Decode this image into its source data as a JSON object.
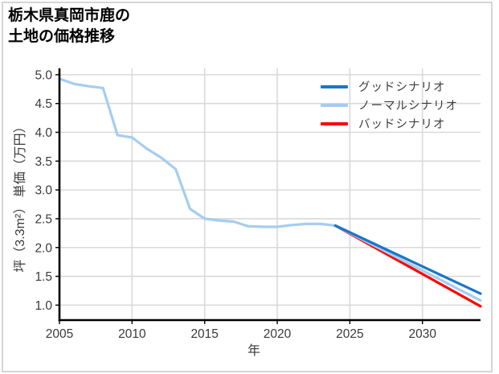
{
  "title": {
    "line1": "栃木県真岡市鹿の",
    "line2": "土地の価格推移"
  },
  "chart_data": {
    "type": "line",
    "title": "栃木県真岡市鹿の土地の価格推移",
    "xlabel": "年",
    "ylabel": "坪（3.3m²） 単価（万円）",
    "xlim": [
      2005,
      2034
    ],
    "ylim": [
      0.74,
      5.11
    ],
    "x_ticks": [
      2005,
      2010,
      2015,
      2020,
      2025,
      2030
    ],
    "y_ticks": [
      "5.0",
      "4.5",
      "4.0",
      "3.5",
      "3.0",
      "2.5",
      "2.0",
      "1.5",
      "1.0"
    ],
    "grid": true,
    "legend_position": "upper-right",
    "colors": {
      "grid": "#d9d9d9",
      "axis": "#000000",
      "tick_text": "#3a3a3a",
      "history": "#a5cdf0",
      "good": "#1976c8",
      "normal": "#a5cdf0",
      "bad": "#ff0000"
    },
    "legend": [
      {
        "label": "グッドシナリオ",
        "color": "#1976c8"
      },
      {
        "label": "ノーマルシナリオ",
        "color": "#a5cdf0"
      },
      {
        "label": "バッドシナリオ",
        "color": "#ff0000"
      }
    ],
    "series": [
      {
        "id": "history",
        "color": "#a5cdf0",
        "x": [
          2005,
          2006,
          2007,
          2008,
          2009,
          2010,
          2011,
          2012,
          2013,
          2014,
          2015,
          2016,
          2017,
          2018,
          2019,
          2020,
          2021,
          2022,
          2023,
          2024
        ],
        "values": [
          4.93,
          4.84,
          4.8,
          4.77,
          3.95,
          3.91,
          3.72,
          3.56,
          3.36,
          2.67,
          2.5,
          2.47,
          2.45,
          2.37,
          2.36,
          2.36,
          2.39,
          2.41,
          2.41,
          2.38
        ]
      },
      {
        "id": "bad",
        "color": "#ff0000",
        "x": [
          2024,
          2034
        ],
        "values": [
          2.38,
          0.98
        ]
      },
      {
        "id": "normal",
        "color": "#a5cdf0",
        "x": [
          2024,
          2034
        ],
        "values": [
          2.38,
          1.08
        ]
      },
      {
        "id": "good",
        "color": "#1976c8",
        "x": [
          2024,
          2034
        ],
        "values": [
          2.38,
          1.2
        ]
      }
    ]
  }
}
